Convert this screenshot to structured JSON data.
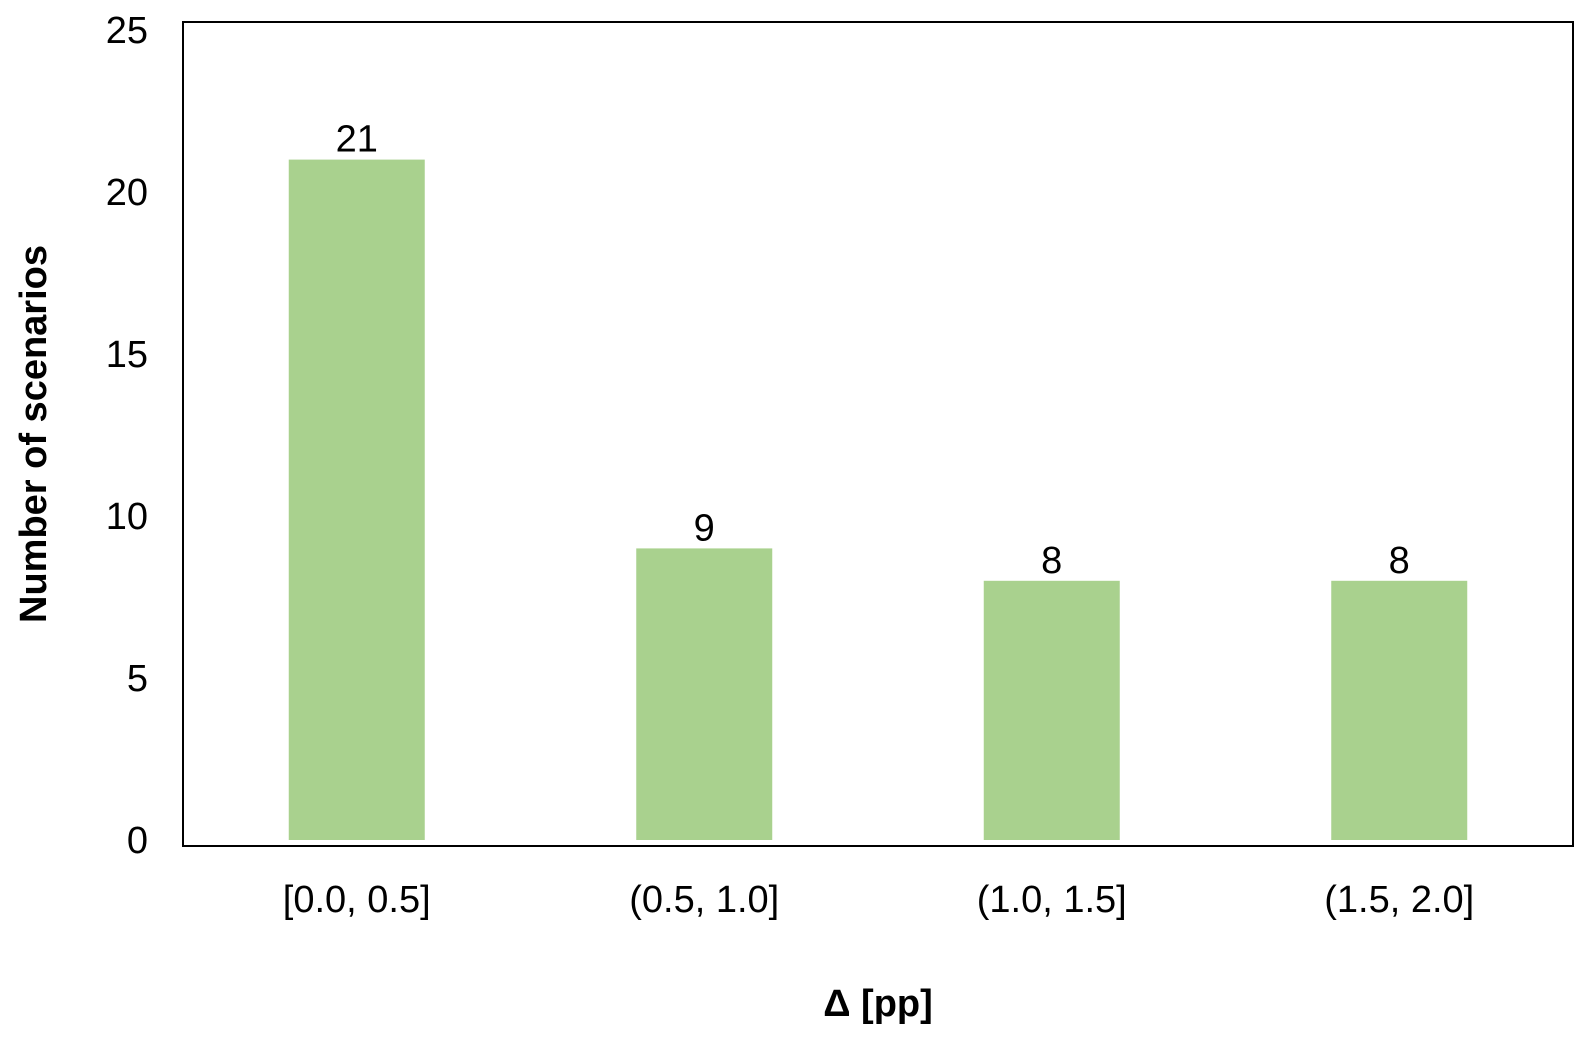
{
  "chart_data": {
    "type": "bar",
    "categories": [
      "[0.0, 0.5]",
      "(0.5, 1.0]",
      "(1.0, 1.5]",
      "(1.5, 2.0]"
    ],
    "values": [
      21,
      9,
      8,
      8
    ],
    "data_labels": [
      "21",
      "9",
      "8",
      "8"
    ],
    "xlabel": "Δ [pp]",
    "ylabel": "Number of scenarios",
    "ylim": [
      0,
      25
    ],
    "y_ticks": [
      0,
      5,
      10,
      15,
      20,
      25
    ],
    "y_tick_labels": [
      "0",
      "5",
      "10",
      "15",
      "20",
      "25"
    ],
    "grid": false,
    "bar_color": "#a9d18e",
    "frame_color": "#000000"
  }
}
